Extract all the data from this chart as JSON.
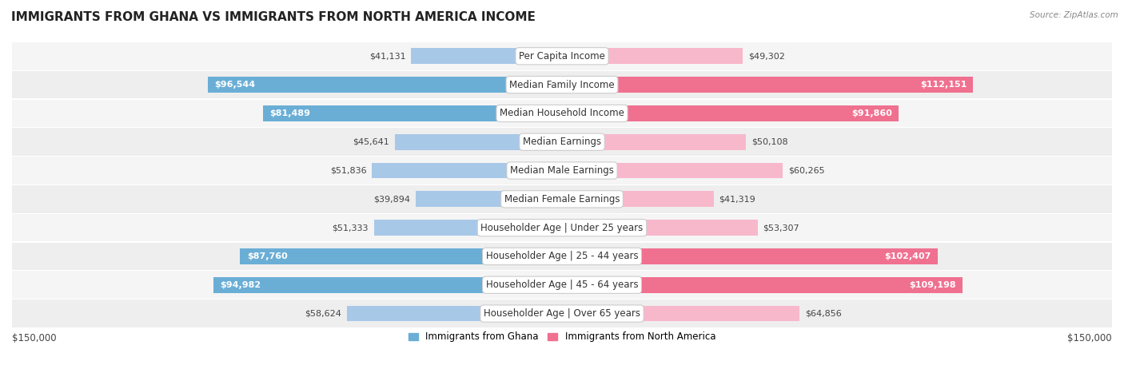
{
  "title": "IMMIGRANTS FROM GHANA VS IMMIGRANTS FROM NORTH AMERICA INCOME",
  "source": "Source: ZipAtlas.com",
  "categories": [
    "Per Capita Income",
    "Median Family Income",
    "Median Household Income",
    "Median Earnings",
    "Median Male Earnings",
    "Median Female Earnings",
    "Householder Age | Under 25 years",
    "Householder Age | 25 - 44 years",
    "Householder Age | 45 - 64 years",
    "Householder Age | Over 65 years"
  ],
  "ghana_values": [
    41131,
    96544,
    81489,
    45641,
    51836,
    39894,
    51333,
    87760,
    94982,
    58624
  ],
  "northamerica_values": [
    49302,
    112151,
    91860,
    50108,
    60265,
    41319,
    53307,
    102407,
    109198,
    64856
  ],
  "ghana_color_light": "#a8c8e8",
  "ghana_color_dark": "#6aaed6",
  "northamerica_color_light": "#f8b8cc",
  "northamerica_color_dark": "#f07090",
  "row_bg_even": "#f5f5f5",
  "row_bg_odd": "#eeeeee",
  "max_value": 150000,
  "title_fontsize": 11,
  "cat_fontsize": 8.5,
  "val_fontsize": 8.0,
  "legend_label_ghana": "Immigrants from Ghana",
  "legend_label_na": "Immigrants from North America",
  "axis_label": "$150,000",
  "ghana_inside_threshold": 65000,
  "na_inside_threshold": 85000
}
